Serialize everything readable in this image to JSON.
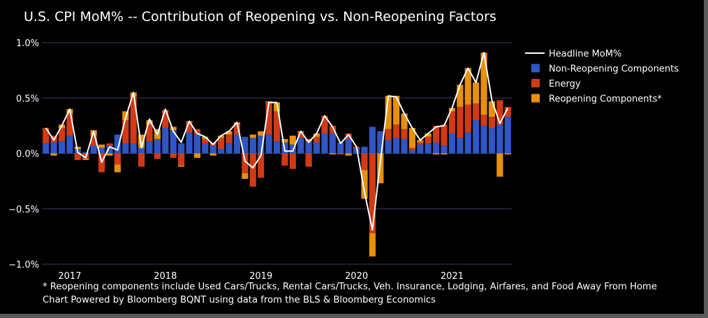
{
  "chart_data": {
    "type": "bar",
    "title": "U.S. CPI MoM% -- Contribution of Reopening vs. Non-Reopening Factors",
    "ylim": [
      -1.0,
      1.0
    ],
    "yticks": [
      {
        "value": 1.0,
        "label": "1.0%"
      },
      {
        "value": 0.5,
        "label": "0.5%"
      },
      {
        "value": 0.0,
        "label": "0.0%"
      },
      {
        "value": -0.5,
        "label": "−0.5%"
      },
      {
        "value": -1.0,
        "label": "−1.0%"
      }
    ],
    "xticks": [
      {
        "index": 3,
        "label": "2017"
      },
      {
        "index": 15,
        "label": "2018"
      },
      {
        "index": 27,
        "label": "2019"
      },
      {
        "index": 39,
        "label": "2020"
      },
      {
        "index": 51,
        "label": "2021"
      }
    ],
    "grid": true,
    "legend_position": "top-right",
    "colors": {
      "non_reopening": "#2f56c4",
      "energy": "#d23a16",
      "reopening": "#e8900c",
      "headline": "#ffffff",
      "grid": "#3a3a5a"
    },
    "series": [
      {
        "name": "Headline MoM%",
        "kind": "line",
        "color": "#ffffff",
        "values": [
          0.23,
          0.12,
          0.25,
          0.4,
          0.01,
          -0.04,
          0.2,
          -0.08,
          0.06,
          0.03,
          0.32,
          0.55,
          0.05,
          0.31,
          0.17,
          0.4,
          0.2,
          0.1,
          0.29,
          0.18,
          0.15,
          0.08,
          0.16,
          0.2,
          0.28,
          -0.07,
          -0.13,
          -0.02,
          0.46,
          0.46,
          0.02,
          0.02,
          0.2,
          0.1,
          0.18,
          0.34,
          0.24,
          0.09,
          0.17,
          0.06,
          -0.35,
          -0.69,
          -0.07,
          0.52,
          0.51,
          0.36,
          0.23,
          0.12,
          0.18,
          0.24,
          0.25,
          0.41,
          0.62,
          0.77,
          0.64,
          0.91,
          0.48,
          0.27,
          0.41
        ]
      },
      {
        "name": "Non-Reopening Components",
        "kind": "bar",
        "color": "#2f56c4",
        "values": [
          0.09,
          0.1,
          0.11,
          0.16,
          0.04,
          0.01,
          0.07,
          0.05,
          0.07,
          0.17,
          0.09,
          0.09,
          0.05,
          0.11,
          0.13,
          0.23,
          0.21,
          0.09,
          0.19,
          0.17,
          0.09,
          0.07,
          0.04,
          0.09,
          0.17,
          0.15,
          0.14,
          0.16,
          0.17,
          0.11,
          0.1,
          0.08,
          0.14,
          0.11,
          0.1,
          0.18,
          0.18,
          0.1,
          0.13,
          0.05,
          0.06,
          0.24,
          0.2,
          0.12,
          0.14,
          0.13,
          0.03,
          0.08,
          0.09,
          0.1,
          0.07,
          0.18,
          0.14,
          0.19,
          0.3,
          0.25,
          0.23,
          0.26,
          0.33
        ]
      },
      {
        "name": "Energy",
        "kind": "bar",
        "color": "#d23a16",
        "values": [
          0.14,
          0.06,
          0.12,
          0.2,
          -0.06,
          -0.05,
          0.09,
          -0.17,
          0.02,
          -0.1,
          0.21,
          0.42,
          -0.12,
          0.15,
          -0.05,
          0.15,
          -0.04,
          -0.11,
          0.09,
          0.05,
          0.04,
          0.03,
          0.1,
          0.08,
          0.09,
          -0.18,
          -0.3,
          -0.22,
          0.29,
          0.27,
          -0.11,
          -0.14,
          0.05,
          -0.12,
          0.05,
          0.16,
          0.07,
          -0.01,
          0.05,
          0.01,
          -0.15,
          -0.72,
          0.0,
          0.1,
          0.12,
          0.09,
          0.02,
          0.02,
          0.06,
          0.15,
          0.19,
          0.2,
          0.28,
          0.25,
          0.15,
          0.1,
          0.1,
          0.22,
          0.09
        ]
      },
      {
        "name": "Reopening Components*",
        "kind": "bar",
        "color": "#e8900c",
        "values": [
          0.0,
          -0.02,
          0.03,
          0.04,
          0.02,
          -0.01,
          0.05,
          0.03,
          -0.02,
          -0.07,
          0.08,
          0.04,
          0.12,
          0.04,
          0.09,
          0.01,
          0.03,
          -0.01,
          0.01,
          -0.04,
          0.02,
          -0.02,
          0.02,
          0.03,
          0.02,
          -0.05,
          0.03,
          0.04,
          0.01,
          0.08,
          0.03,
          0.08,
          0.01,
          0.02,
          0.03,
          0.0,
          -0.01,
          0.0,
          -0.02,
          0.0,
          -0.26,
          -0.21,
          -0.27,
          0.3,
          0.26,
          0.14,
          0.18,
          0.02,
          0.03,
          -0.01,
          -0.01,
          0.03,
          0.2,
          0.33,
          0.19,
          0.56,
          0.14,
          -0.21,
          -0.01
        ]
      }
    ],
    "footnotes": [
      "* Reopening components include Used Cars/Trucks, Rental Cars/Trucks, Veh. Insurance, Lodging, Airfares, and Food Away From Home",
      "Chart Powered by Bloomberg BQNT using data from the BLS & Bloomberg Economics"
    ]
  }
}
